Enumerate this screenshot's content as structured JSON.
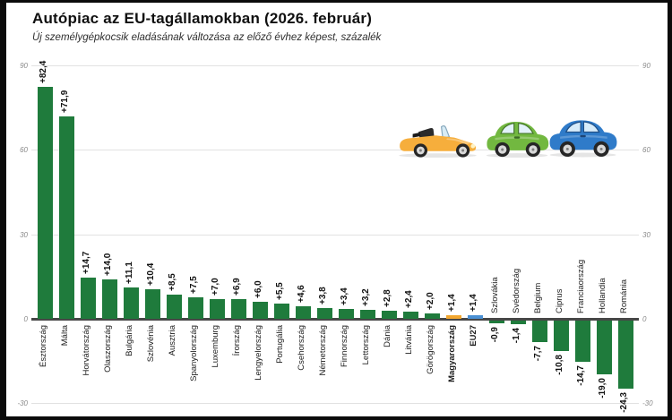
{
  "header": {
    "title": "Autópiac az EU-tagállamokban (2026. február)",
    "subtitle": "Új személygépkocsik eladásának változása az előző évhez képest, százalék"
  },
  "chart_data": {
    "type": "bar",
    "title": "Autópiac az EU-tagállamokban (2026. február)",
    "subtitle": "Új személygépkocsik eladásának változása az előző évhez képest, százalék",
    "unit": "percent, change vs previous year",
    "categories": [
      "Észtország",
      "Málta",
      "Horvátország",
      "Olaszország",
      "Bulgária",
      "Szlovénia",
      "Ausztria",
      "Spanyolország",
      "Luxemburg",
      "Írország",
      "Lengyelország",
      "Portugália",
      "Csehország",
      "Németország",
      "Finnország",
      "Lettország",
      "Dánia",
      "Litvánia",
      "Görögország",
      "Magyarország",
      "EU27",
      "Szlovákia",
      "Svédország",
      "Belgium",
      "Ciprus",
      "Franciaország",
      "Hollandia",
      "Románia"
    ],
    "values": [
      82.4,
      71.9,
      14.7,
      14.0,
      11.1,
      10.4,
      8.5,
      7.5,
      7.0,
      6.9,
      6.0,
      5.5,
      4.6,
      3.8,
      3.4,
      3.2,
      2.8,
      2.4,
      2.0,
      1.4,
      1.4,
      -0.9,
      -1.4,
      -7.7,
      -10.8,
      -14.7,
      -19.0,
      -24.3
    ],
    "value_labels": [
      "+82,4",
      "+71,9",
      "+14,7",
      "+14,0",
      "+11,1",
      "+10,4",
      "+8,5",
      "+7,5",
      "+7,0",
      "+6,9",
      "+6,0",
      "+5,5",
      "+4,6",
      "+3,8",
      "+3,4",
      "+3,2",
      "+2,8",
      "+2,4",
      "+2,0",
      "+1,4",
      "+1,4",
      "-0,9",
      "-1,4",
      "-7,7",
      "-10,8",
      "-14,7",
      "-19,0",
      "-24,3"
    ],
    "bold_categories": [
      "Magyarország",
      "EU27"
    ],
    "bar_color_default": "#1F7B3C",
    "bar_color_overrides": {
      "Magyarország": "#F2A62F",
      "EU27": "#4A90D4"
    },
    "ylim": [
      -30,
      90
    ],
    "yticks": [
      90,
      60,
      30,
      0,
      -30
    ],
    "ytick_labels": [
      "90",
      "60",
      "30",
      "0",
      "-30"
    ],
    "grid": true,
    "legend": "none",
    "xlabel": "",
    "ylabel": ""
  },
  "decor": {
    "grid_color": "#e2e2e2",
    "zero_line_color": "#474747",
    "tick_color": "#8a8a8a",
    "cars": {
      "names": [
        "convertible-car-icon",
        "hatchback-car-icon",
        "sedan-car-icon"
      ],
      "colors": [
        "#F6AE3C",
        "#72B840",
        "#2F7BC9"
      ]
    }
  }
}
